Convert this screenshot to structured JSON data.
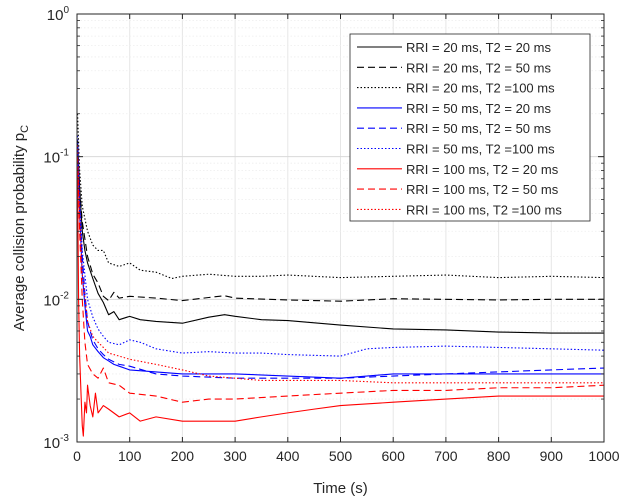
{
  "chart_data": {
    "type": "line",
    "title": "",
    "xlabel": "Time (s)",
    "ylabel": "Average collision probability p",
    "ylabel_subscript": "C",
    "xlim": [
      0,
      1000
    ],
    "ylim": [
      0.001,
      1
    ],
    "y_scale": "log",
    "grid": "on (major and minor)",
    "legend_position": "top-right",
    "x_ticks": [
      0,
      100,
      200,
      300,
      400,
      500,
      600,
      700,
      800,
      900,
      1000
    ],
    "y_ticks": [
      {
        "value": 0.001,
        "base": "10",
        "exp": "-3"
      },
      {
        "value": 0.01,
        "base": "10",
        "exp": "-2"
      },
      {
        "value": 0.1,
        "base": "10",
        "exp": "-1"
      },
      {
        "value": 1,
        "base": "10",
        "exp": "0"
      }
    ],
    "series": [
      {
        "name": "RRI = 20 ms, T2 = 20 ms",
        "color": "#000000",
        "dash": "solid",
        "x": [
          1,
          5,
          10,
          15,
          20,
          30,
          40,
          50,
          60,
          70,
          80,
          100,
          120,
          150,
          200,
          250,
          280,
          300,
          350,
          400,
          500,
          600,
          700,
          800,
          900,
          1000
        ],
        "y": [
          0.13,
          0.06,
          0.03,
          0.022,
          0.018,
          0.014,
          0.011,
          0.0095,
          0.0078,
          0.0082,
          0.0072,
          0.0076,
          0.0072,
          0.007,
          0.0068,
          0.0075,
          0.0078,
          0.0076,
          0.0072,
          0.0071,
          0.0066,
          0.0062,
          0.0061,
          0.0059,
          0.0058,
          0.0058
        ]
      },
      {
        "name": "RRI = 20 ms, T2 = 50 ms",
        "color": "#000000",
        "dash": "dashed",
        "x": [
          1,
          5,
          10,
          20,
          30,
          40,
          50,
          60,
          70,
          80,
          100,
          150,
          200,
          250,
          280,
          300,
          400,
          500,
          600,
          700,
          800,
          900,
          1000
        ],
        "y": [
          0.12,
          0.06,
          0.035,
          0.02,
          0.015,
          0.013,
          0.0105,
          0.0098,
          0.0112,
          0.0102,
          0.0105,
          0.0102,
          0.0098,
          0.0103,
          0.0106,
          0.0102,
          0.0099,
          0.0097,
          0.0101,
          0.01,
          0.0099,
          0.01,
          0.01
        ]
      },
      {
        "name": "RRI = 20 ms, T2 =100 ms",
        "color": "#000000",
        "dash": "dotted",
        "x": [
          1,
          5,
          10,
          20,
          30,
          40,
          50,
          60,
          80,
          100,
          120,
          150,
          180,
          200,
          250,
          300,
          350,
          400,
          500,
          600,
          700,
          800,
          900,
          1000
        ],
        "y": [
          0.2,
          0.08,
          0.045,
          0.03,
          0.024,
          0.022,
          0.022,
          0.018,
          0.017,
          0.018,
          0.016,
          0.0155,
          0.014,
          0.0145,
          0.015,
          0.0145,
          0.0145,
          0.0148,
          0.0142,
          0.0145,
          0.0148,
          0.0142,
          0.0145,
          0.0142
        ]
      },
      {
        "name": "RRI = 50 ms, T2 = 20 ms",
        "color": "#0000ff",
        "dash": "solid",
        "x": [
          1,
          5,
          10,
          15,
          20,
          25,
          30,
          40,
          50,
          60,
          70,
          80,
          100,
          150,
          200,
          250,
          300,
          400,
          500,
          600,
          700,
          800,
          900,
          1000
        ],
        "y": [
          0.12,
          0.04,
          0.015,
          0.009,
          0.006,
          0.0055,
          0.0048,
          0.0043,
          0.0039,
          0.0037,
          0.0035,
          0.0034,
          0.0032,
          0.0031,
          0.003,
          0.003,
          0.003,
          0.0029,
          0.0028,
          0.003,
          0.003,
          0.003,
          0.003,
          0.003
        ]
      },
      {
        "name": "RRI = 50 ms, T2 = 50 ms",
        "color": "#0000ff",
        "dash": "dashed",
        "x": [
          1,
          5,
          10,
          15,
          20,
          25,
          30,
          40,
          50,
          60,
          80,
          100,
          150,
          200,
          300,
          400,
          500,
          600,
          700,
          800,
          900,
          1000
        ],
        "y": [
          0.12,
          0.045,
          0.02,
          0.011,
          0.007,
          0.006,
          0.0052,
          0.0045,
          0.0041,
          0.0038,
          0.0035,
          0.0034,
          0.003,
          0.0029,
          0.0028,
          0.0028,
          0.0028,
          0.0029,
          0.003,
          0.0031,
          0.0032,
          0.0033
        ]
      },
      {
        "name": "RRI = 50 ms, T2 =100 ms",
        "color": "#0000ff",
        "dash": "dotted",
        "x": [
          1,
          5,
          10,
          20,
          30,
          40,
          50,
          60,
          80,
          100,
          120,
          150,
          200,
          250,
          300,
          350,
          400,
          500,
          550,
          600,
          700,
          800,
          900,
          1000
        ],
        "y": [
          0.14,
          0.05,
          0.022,
          0.01,
          0.0075,
          0.0062,
          0.0055,
          0.005,
          0.0048,
          0.0052,
          0.005,
          0.0045,
          0.0042,
          0.0043,
          0.0042,
          0.0042,
          0.0041,
          0.004,
          0.0045,
          0.0046,
          0.0047,
          0.0046,
          0.0045,
          0.0044
        ]
      },
      {
        "name": "RRI = 100 ms, T2 = 20 ms",
        "color": "#ff0000",
        "dash": "solid",
        "x": [
          1,
          3,
          5,
          8,
          10,
          12,
          15,
          18,
          20,
          25,
          30,
          35,
          40,
          50,
          60,
          80,
          100,
          120,
          150,
          200,
          250,
          300,
          350,
          400,
          450,
          500,
          600,
          700,
          800,
          900,
          1000
        ],
        "y": [
          0.08,
          0.01,
          0.004,
          0.002,
          0.0013,
          0.0011,
          0.0019,
          0.0016,
          0.0025,
          0.0018,
          0.0015,
          0.0022,
          0.0016,
          0.0018,
          0.0017,
          0.0015,
          0.0016,
          0.0014,
          0.0015,
          0.0014,
          0.0014,
          0.0014,
          0.0015,
          0.0016,
          0.0017,
          0.0018,
          0.0019,
          0.002,
          0.0021,
          0.0021,
          0.0021
        ]
      },
      {
        "name": "RRI = 100 ms, T2 = 50 ms",
        "color": "#ff0000",
        "dash": "dashed",
        "x": [
          1,
          5,
          10,
          15,
          20,
          30,
          40,
          50,
          60,
          80,
          100,
          150,
          200,
          250,
          300,
          400,
          500,
          600,
          700,
          800,
          900,
          1000
        ],
        "y": [
          0.1,
          0.03,
          0.01,
          0.005,
          0.0035,
          0.003,
          0.0028,
          0.0033,
          0.0026,
          0.0025,
          0.0022,
          0.0021,
          0.0019,
          0.002,
          0.002,
          0.0021,
          0.0022,
          0.0023,
          0.0023,
          0.0024,
          0.0024,
          0.0025
        ]
      },
      {
        "name": "RRI = 100 ms, T2 =100 ms",
        "color": "#ff0000",
        "dash": "dotted",
        "x": [
          1,
          5,
          10,
          20,
          30,
          40,
          50,
          60,
          80,
          100,
          150,
          200,
          250,
          300,
          350,
          400,
          500,
          600,
          700,
          800,
          900,
          1000
        ],
        "y": [
          0.12,
          0.04,
          0.015,
          0.007,
          0.0055,
          0.005,
          0.0046,
          0.0042,
          0.004,
          0.0038,
          0.0035,
          0.0032,
          0.0029,
          0.0028,
          0.0027,
          0.0027,
          0.0027,
          0.0026,
          0.0026,
          0.0026,
          0.0026,
          0.0026
        ]
      }
    ]
  }
}
